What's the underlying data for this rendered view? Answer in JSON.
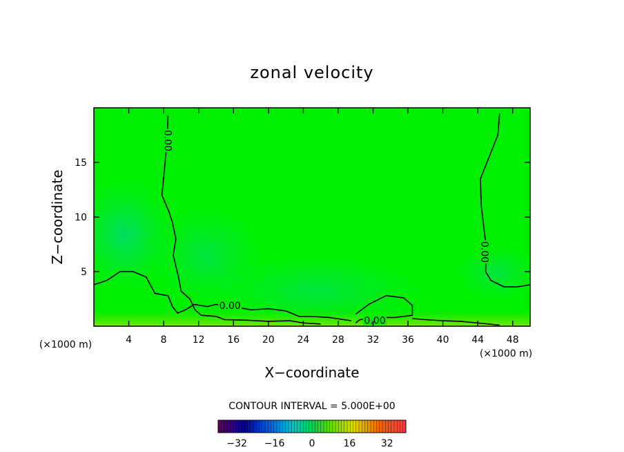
{
  "chart_data": {
    "type": "heatmap",
    "title": "zonal velocity",
    "xlabel": "X−coordinate",
    "ylabel": "Z−coordinate",
    "x_unit_left": "(×1000 m)",
    "x_unit_right": "(×1000 m)",
    "xlim": [
      0,
      50
    ],
    "ylim": [
      0,
      20
    ],
    "x_ticks": [
      4,
      8,
      12,
      16,
      20,
      24,
      28,
      32,
      36,
      40,
      44,
      48
    ],
    "y_ticks": [
      5,
      10,
      15
    ],
    "contour_interval_text": "CONTOUR INTERVAL = 5.000E+00",
    "contour_labels": [
      "0.00",
      "0.00",
      "0.00",
      "0.00"
    ],
    "colorbar": {
      "min": -40,
      "max": 40,
      "ticks": [
        -32,
        -16,
        0,
        16,
        32
      ],
      "tick_labels": [
        "−32",
        "−16",
        "0",
        "16",
        "32"
      ]
    },
    "field_summary": "Zonal velocity is near 0 over most of the domain; slightly negative core near x=2-6 km, z=6-11 km; weak positive layer near surface",
    "zero_contours": [
      {
        "name": "left-vertical-zero",
        "points": [
          [
            8.5,
            19.3
          ],
          [
            8.4,
            17.0
          ],
          [
            8.1,
            14.5
          ],
          [
            7.8,
            12.0
          ],
          [
            8.6,
            10.5
          ],
          [
            9.0,
            9.5
          ],
          [
            9.4,
            8.0
          ],
          [
            9.1,
            6.5
          ],
          [
            9.7,
            4.5
          ],
          [
            10.0,
            3.2
          ],
          [
            11.0,
            2.5
          ],
          [
            11.6,
            1.5
          ],
          [
            12.3,
            1.0
          ],
          [
            14.0,
            0.9
          ],
          [
            15.0,
            0.6
          ],
          [
            17.5,
            0.55
          ],
          [
            20.0,
            0.45
          ],
          [
            22.5,
            0.5
          ],
          [
            24.0,
            0.3
          ],
          [
            26.0,
            0.2
          ]
        ]
      },
      {
        "name": "lower-left-zero",
        "points": [
          [
            0,
            3.8
          ],
          [
            1.5,
            4.2
          ],
          [
            3.0,
            5.0
          ],
          [
            4.5,
            5.0
          ],
          [
            6.0,
            4.5
          ],
          [
            7.0,
            3.0
          ],
          [
            8.5,
            2.8
          ],
          [
            9.0,
            1.8
          ],
          [
            9.6,
            1.2
          ],
          [
            10.5,
            1.5
          ],
          [
            11.5,
            2.0
          ],
          [
            13.0,
            1.8
          ],
          [
            14.0,
            2.0
          ],
          [
            16.0,
            1.8
          ],
          [
            18.0,
            1.5
          ],
          [
            20.0,
            1.6
          ],
          [
            22.0,
            1.4
          ],
          [
            23.5,
            0.9
          ],
          [
            25.0,
            0.9
          ],
          [
            27.0,
            0.8
          ],
          [
            29.5,
            0.5
          ]
        ]
      },
      {
        "name": "hump-zero",
        "points": [
          [
            30.0,
            1.1
          ],
          [
            31.5,
            2.0
          ],
          [
            33.5,
            2.8
          ],
          [
            35.5,
            2.6
          ],
          [
            36.5,
            1.9
          ],
          [
            36.5,
            1.0
          ],
          [
            34.5,
            0.8
          ],
          [
            33.0,
            0.8
          ],
          [
            31.5,
            0.7
          ],
          [
            30.5,
            0.6
          ],
          [
            30.0,
            0.3
          ]
        ]
      },
      {
        "name": "bottom-right-zero",
        "points": [
          [
            36.5,
            0.7
          ],
          [
            38.0,
            0.6
          ],
          [
            40.0,
            0.5
          ],
          [
            42.0,
            0.45
          ],
          [
            44.0,
            0.3
          ],
          [
            46.5,
            0.1
          ]
        ]
      },
      {
        "name": "right-vertical-zero",
        "points": [
          [
            46.5,
            19.5
          ],
          [
            46.3,
            17.5
          ],
          [
            45.3,
            15.5
          ],
          [
            44.3,
            13.5
          ],
          [
            44.4,
            11.0
          ],
          [
            44.7,
            9.0
          ],
          [
            45.0,
            7.0
          ],
          [
            44.9,
            5.0
          ],
          [
            45.5,
            4.2
          ],
          [
            47.0,
            3.6
          ],
          [
            48.5,
            3.6
          ],
          [
            50.0,
            3.8
          ]
        ]
      }
    ],
    "colors": {
      "field_base": "#00ef00",
      "negative_patch": "#00d86a",
      "positive_strip": "#66e600",
      "contour": "#000000"
    }
  }
}
